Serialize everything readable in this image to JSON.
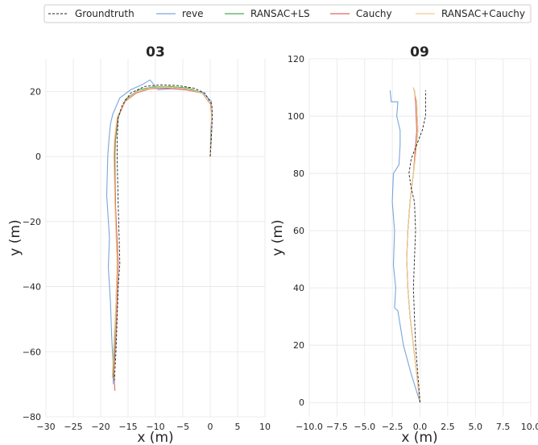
{
  "legend": {
    "entries": [
      {
        "name": "Groundtruth",
        "color": "#222222",
        "dash": "3,2"
      },
      {
        "name": "reve",
        "color": "#7aa6dc"
      },
      {
        "name": "RANSAC+LS",
        "color": "#4caf50"
      },
      {
        "name": "Cauchy",
        "color": "#e06666"
      },
      {
        "name": "RANSAC+Cauchy",
        "color": "#f3c98b"
      }
    ],
    "placement": "top"
  },
  "chart_data": [
    {
      "type": "line",
      "title": "03",
      "xlabel": "x (m)",
      "ylabel": "y (m)",
      "xlim": [
        -30,
        10
      ],
      "ylim": [
        -80,
        30
      ],
      "xticks": [
        -30,
        -25,
        -20,
        -15,
        -10,
        -5,
        0,
        5,
        10
      ],
      "xtick_labels": [
        "−30",
        "−25",
        "−20",
        "−15",
        "−10",
        "−5",
        "0",
        "5",
        "10"
      ],
      "yticks": [
        -80,
        -60,
        -40,
        -20,
        0,
        20
      ],
      "ytick_labels": [
        "−80",
        "−60",
        "−40",
        "−20",
        "0",
        "20"
      ],
      "grid": true,
      "series": [
        {
          "name": "Groundtruth",
          "x": [
            0,
            0.2,
            0.4,
            0.3,
            -1,
            -3,
            -6,
            -9,
            -12,
            -14.5,
            -16,
            -16.8,
            -17,
            -17,
            -16.8,
            -16.5,
            -16.8,
            -17,
            -17.2,
            -17.4,
            -17.5
          ],
          "y": [
            0,
            6,
            12,
            16,
            19.5,
            21,
            21.8,
            22,
            21.5,
            19.5,
            16,
            12,
            5,
            0,
            -15,
            -33,
            -40,
            -50,
            -60,
            -66,
            -69
          ]
        },
        {
          "name": "reve",
          "x": [
            0,
            0.1,
            0.3,
            0.2,
            -1.5,
            -4,
            -7,
            -9.5,
            -11,
            -12.5,
            -14.5,
            -16.5,
            -17.8,
            -18.2,
            -18.5,
            -18.7,
            -18.9,
            -18.4,
            -18.6,
            -18.2,
            -18.0,
            -17.8,
            -17.7
          ],
          "y": [
            0,
            7,
            13,
            17,
            19.8,
            20.5,
            20.8,
            20.5,
            23.5,
            22,
            20.5,
            18,
            13,
            10,
            5,
            0,
            -12,
            -25,
            -34,
            -45,
            -55,
            -62,
            -70
          ]
        },
        {
          "name": "RANSAC+LS",
          "x": [
            0,
            0.2,
            0.3,
            0.2,
            -1.5,
            -4,
            -7.5,
            -10.5,
            -13,
            -15.5,
            -16.8,
            -17.3,
            -17.4,
            -17.3,
            -17.0,
            -17.2,
            -17.5,
            -17.7
          ],
          "y": [
            0,
            6,
            12,
            16,
            19.5,
            21,
            21.5,
            21.3,
            20.5,
            17.5,
            12,
            5,
            0,
            -15,
            -33,
            -45,
            -58,
            -68
          ]
        },
        {
          "name": "Cauchy",
          "x": [
            0,
            0.2,
            0.3,
            0.1,
            -1.5,
            -4.5,
            -8,
            -11,
            -13.5,
            -15.5,
            -16.9,
            -17.4,
            -17.5,
            -17.3,
            -16.8,
            -17.0,
            -17.3,
            -17.6,
            -17.4
          ],
          "y": [
            0,
            6,
            12,
            16,
            19.5,
            20.5,
            21,
            20.8,
            19.5,
            17,
            12,
            5,
            0,
            -15,
            -33,
            -45,
            -58,
            -66,
            -72
          ]
        },
        {
          "name": "RANSAC+Cauchy",
          "x": [
            0,
            0.2,
            0.3,
            0.2,
            -1.5,
            -4.5,
            -8,
            -11,
            -13.5,
            -15.6,
            -17.0,
            -17.5,
            -17.6,
            -17.4,
            -17.0,
            -17.2,
            -17.6,
            -17.9
          ],
          "y": [
            0,
            6,
            12,
            16,
            19.5,
            20.8,
            21.3,
            21.0,
            19.8,
            17,
            12,
            5,
            0,
            -15,
            -33,
            -45,
            -58,
            -68
          ]
        }
      ]
    },
    {
      "type": "line",
      "title": "09",
      "xlabel": "x (m)",
      "ylabel": "y (m)",
      "xlim": [
        -10,
        10
      ],
      "ylim": [
        -5,
        120
      ],
      "xticks": [
        -10,
        -7.5,
        -5,
        -2.5,
        0,
        2.5,
        5,
        7.5,
        10
      ],
      "xtick_labels": [
        "−10.0",
        "−7.5",
        "−5.0",
        "−2.5",
        "0.0",
        "2.5",
        "5.0",
        "7.5",
        "10.0"
      ],
      "yticks": [
        0,
        20,
        40,
        60,
        80,
        100,
        120
      ],
      "ytick_labels": [
        "0",
        "20",
        "40",
        "60",
        "80",
        "100",
        "120"
      ],
      "grid": true,
      "series": [
        {
          "name": "Groundtruth",
          "x": [
            0,
            -0.2,
            -0.4,
            -0.5,
            -0.6,
            -0.5,
            -0.4,
            -0.5,
            -0.8,
            -1.0,
            -0.8,
            -0.3,
            0.2,
            0.5,
            0.5
          ],
          "y": [
            0,
            10,
            20,
            30,
            40,
            50,
            60,
            70,
            75,
            80,
            85,
            90,
            95,
            100,
            109
          ]
        },
        {
          "name": "reve",
          "x": [
            0,
            -0.8,
            -1.5,
            -2.0,
            -2.3,
            -2.2,
            -2.4,
            -2.3,
            -2.5,
            -2.4,
            -1.9,
            -1.8,
            -1.8,
            -2.1,
            -2.0,
            -2.6,
            -2.7
          ],
          "y": [
            0,
            10,
            20,
            32,
            33,
            40,
            48,
            60,
            70,
            80,
            83,
            90,
            95,
            100,
            105,
            105,
            109
          ]
        },
        {
          "name": "RANSAC+LS",
          "x": [
            0,
            -0.3,
            -0.6,
            -0.9,
            -1.1,
            -1.2,
            -1.1,
            -0.9,
            -0.6,
            -0.3,
            -0.2,
            -0.3,
            -0.6
          ],
          "y": [
            0,
            10,
            20,
            30,
            40,
            50,
            60,
            70,
            80,
            90,
            95,
            105,
            110
          ]
        },
        {
          "name": "Cauchy",
          "x": [
            0,
            -0.3,
            -0.6,
            -0.9,
            -1.1,
            -1.2,
            -1.1,
            -0.9,
            -0.6,
            -0.4,
            -0.3,
            -0.4,
            -0.5
          ],
          "y": [
            0,
            10,
            20,
            30,
            40,
            50,
            60,
            70,
            80,
            90,
            95,
            105,
            109
          ]
        },
        {
          "name": "RANSAC+Cauchy",
          "x": [
            0,
            -0.3,
            -0.6,
            -0.9,
            -1.1,
            -1.2,
            -1.1,
            -0.9,
            -0.6,
            -0.3,
            -0.2,
            -0.3,
            -0.6
          ],
          "y": [
            0,
            10,
            20,
            30,
            40,
            50,
            60,
            70,
            80,
            90,
            95,
            105,
            110
          ]
        }
      ]
    }
  ]
}
